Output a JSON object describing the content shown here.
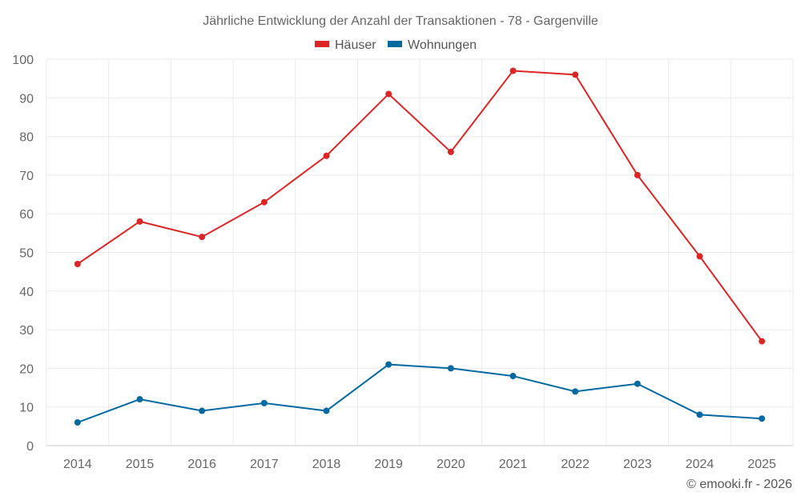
{
  "chart_data": {
    "type": "line",
    "title": "Jährliche Entwicklung der Anzahl der Transaktionen - 78 - Gargenville",
    "categories": [
      "2014",
      "2015",
      "2016",
      "2017",
      "2018",
      "2019",
      "2020",
      "2021",
      "2022",
      "2023",
      "2024",
      "2025"
    ],
    "series": [
      {
        "name": "Häuser",
        "color": "#dc2626",
        "values": [
          47,
          58,
          54,
          63,
          75,
          91,
          76,
          97,
          96,
          70,
          49,
          27
        ]
      },
      {
        "name": "Wohnungen",
        "color": "#0369a1",
        "values": [
          6,
          12,
          9,
          11,
          9,
          21,
          20,
          18,
          14,
          16,
          8,
          7
        ]
      }
    ],
    "ylim": [
      0,
      100
    ],
    "yticks": [
      0,
      10,
      20,
      30,
      40,
      50,
      60,
      70,
      80,
      90,
      100
    ],
    "xlabel": "",
    "ylabel": "",
    "grid": true,
    "legend": "top-center"
  },
  "credit": "© emooki.fr - 2026"
}
